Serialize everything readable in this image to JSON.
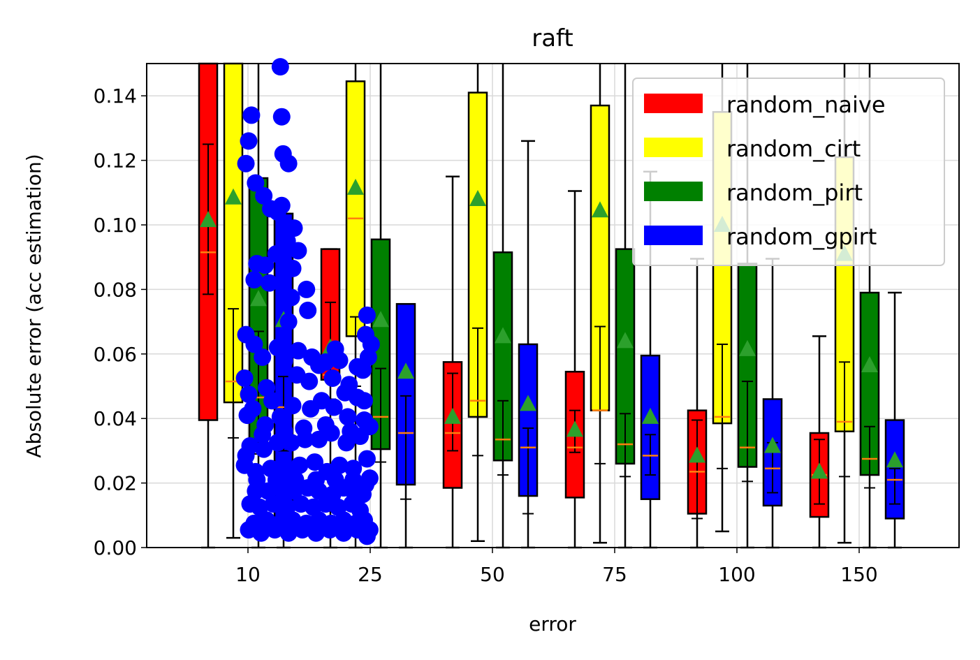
{
  "chart_data": {
    "type": "box",
    "title": "raft",
    "xlabel": "error",
    "ylabel": "Absolute error (acc estimation)",
    "ylim": [
      0,
      0.15
    ],
    "y_ticks": [
      "0.00",
      "0.02",
      "0.04",
      "0.06",
      "0.08",
      "0.10",
      "0.12",
      "0.14"
    ],
    "categories": [
      "10",
      "25",
      "50",
      "75",
      "100",
      "150"
    ],
    "grid": true,
    "legend_position": "upper-right",
    "series": [
      {
        "name": "random_naive",
        "color": "#ff0000",
        "boxes": [
          {
            "q1": 0.0395,
            "median": 0.0915,
            "q3": 0.151,
            "mean": 0.1015,
            "whisker_low": 0.0,
            "whisker_high": 0.151,
            "ci": [
              0.0785,
              0.125
            ]
          },
          {
            "q1": 0.052,
            "median": 0.0535,
            "q3": 0.0925,
            "mean": 0.062,
            "whisker_low": 0.0,
            "whisker_high": 0.0925,
            "ci": [
              0.046,
              0.076
            ]
          },
          {
            "q1": 0.0185,
            "median": 0.0355,
            "q3": 0.0575,
            "mean": 0.0405,
            "whisker_low": 0.0,
            "whisker_high": 0.115,
            "ci": [
              0.03,
              0.054
            ]
          },
          {
            "q1": 0.0155,
            "median": 0.031,
            "q3": 0.0545,
            "mean": 0.0365,
            "whisker_low": 0.0,
            "whisker_high": 0.1105,
            "ci": [
              0.0295,
              0.0425
            ]
          },
          {
            "q1": 0.0105,
            "median": 0.0235,
            "q3": 0.0425,
            "mean": 0.0285,
            "whisker_low": 0.0,
            "whisker_high": 0.0895,
            "ci": [
              0.009,
              0.0395
            ]
          },
          {
            "q1": 0.0095,
            "median": 0.0225,
            "q3": 0.0355,
            "mean": 0.0235,
            "whisker_low": 0.0,
            "whisker_high": 0.0655,
            "ci": [
              0.0135,
              0.0335
            ]
          }
        ]
      },
      {
        "name": "random_cirt",
        "color": "#ffff00",
        "boxes": [
          {
            "q1": 0.045,
            "median": 0.0515,
            "q3": 0.151,
            "mean": 0.1085,
            "whisker_low": 0.003,
            "whisker_high": 0.151,
            "ci": [
              0.034,
              0.074
            ]
          },
          {
            "q1": 0.0655,
            "median": 0.102,
            "q3": 0.1445,
            "mean": 0.1115,
            "whisker_low": 0.0,
            "whisker_high": 0.151,
            "ci": [
              0.05,
              0.0715
            ]
          },
          {
            "q1": 0.0405,
            "median": 0.0455,
            "q3": 0.141,
            "mean": 0.108,
            "whisker_low": 0.002,
            "whisker_high": 0.151,
            "ci": [
              0.0285,
              0.068
            ]
          },
          {
            "q1": 0.0425,
            "median": 0.0425,
            "q3": 0.137,
            "mean": 0.1045,
            "whisker_low": 0.0015,
            "whisker_high": 0.151,
            "ci": [
              0.026,
              0.0685
            ]
          },
          {
            "q1": 0.0385,
            "median": 0.0405,
            "q3": 0.135,
            "mean": 0.1,
            "whisker_low": 0.005,
            "whisker_high": 0.151,
            "ci": [
              0.0245,
              0.063
            ]
          },
          {
            "q1": 0.036,
            "median": 0.039,
            "q3": 0.121,
            "mean": 0.091,
            "whisker_low": 0.0015,
            "whisker_high": 0.151,
            "ci": [
              0.022,
              0.0575
            ]
          }
        ]
      },
      {
        "name": "random_pirt",
        "color": "#008000",
        "boxes": [
          {
            "q1": 0.0305,
            "median": 0.0465,
            "q3": 0.1145,
            "mean": 0.077,
            "whisker_low": 0.0,
            "whisker_high": 0.151,
            "ci": [
              0.029,
              0.067
            ]
          },
          {
            "q1": 0.0305,
            "median": 0.0405,
            "q3": 0.0955,
            "mean": 0.0705,
            "whisker_low": 0.0,
            "whisker_high": 0.151,
            "ci": [
              0.0265,
              0.0555
            ]
          },
          {
            "q1": 0.027,
            "median": 0.0335,
            "q3": 0.0915,
            "mean": 0.0655,
            "whisker_low": 0.0,
            "whisker_high": 0.151,
            "ci": [
              0.0225,
              0.0455
            ]
          },
          {
            "q1": 0.026,
            "median": 0.032,
            "q3": 0.0925,
            "mean": 0.064,
            "whisker_low": 0.0,
            "whisker_high": 0.151,
            "ci": [
              0.022,
              0.0415
            ]
          },
          {
            "q1": 0.025,
            "median": 0.031,
            "q3": 0.088,
            "mean": 0.0615,
            "whisker_low": 0.0,
            "whisker_high": 0.151,
            "ci": [
              0.0205,
              0.0515
            ]
          },
          {
            "q1": 0.0225,
            "median": 0.0275,
            "q3": 0.079,
            "mean": 0.0565,
            "whisker_low": 0.0,
            "whisker_high": 0.151,
            "ci": [
              0.0185,
              0.0375
            ]
          }
        ]
      },
      {
        "name": "random_gpirt",
        "color": "#0000ff",
        "boxes": [
          {
            "q1": 0.0045,
            "median": 0.0435,
            "q3": 0.1035,
            "mean": 0.0705,
            "whisker_low": 0.0,
            "whisker_high": 0.1035,
            "ci": [
              0.03,
              0.053
            ]
          },
          {
            "q1": 0.0195,
            "median": 0.0355,
            "q3": 0.0755,
            "mean": 0.0545,
            "whisker_low": 0.0,
            "whisker_high": 0.0755,
            "ci": [
              0.015,
              0.047
            ]
          },
          {
            "q1": 0.016,
            "median": 0.031,
            "q3": 0.063,
            "mean": 0.0445,
            "whisker_low": 0.0,
            "whisker_high": 0.126,
            "ci": [
              0.0105,
              0.037
            ]
          },
          {
            "q1": 0.015,
            "median": 0.0285,
            "q3": 0.0595,
            "mean": 0.0405,
            "whisker_low": 0.0,
            "whisker_high": 0.1165,
            "ci": [
              0.0225,
              0.035
            ]
          },
          {
            "q1": 0.013,
            "median": 0.0245,
            "q3": 0.046,
            "mean": 0.0315,
            "whisker_low": 0.0,
            "whisker_high": 0.0895,
            "ci": [
              0.017,
              0.0325
            ]
          },
          {
            "q1": 0.009,
            "median": 0.021,
            "q3": 0.0395,
            "mean": 0.027,
            "whisker_low": 0.0,
            "whisker_high": 0.079,
            "ci": [
              0.0135,
              0.0245
            ]
          }
        ]
      }
    ],
    "outliers": {
      "color": "#0000ff",
      "points": [
        [
          10.2,
          0.134
        ],
        [
          10.0,
          0.126
        ],
        [
          9.8,
          0.119
        ],
        [
          10.5,
          0.113
        ],
        [
          11.1,
          0.109
        ],
        [
          11.6,
          0.105
        ],
        [
          12.3,
          0.149
        ],
        [
          12.4,
          0.1335
        ],
        [
          12.5,
          0.122
        ],
        [
          12.9,
          0.119
        ],
        [
          12.4,
          0.106
        ],
        [
          12.1,
          0.104
        ],
        [
          13.3,
          0.099
        ],
        [
          12.8,
          0.095
        ],
        [
          13.6,
          0.092
        ],
        [
          13.2,
          0.0865
        ],
        [
          12.0,
          0.091
        ],
        [
          11.2,
          0.0875
        ],
        [
          10.6,
          0.088
        ],
        [
          10.4,
          0.083
        ],
        [
          11.5,
          0.082
        ],
        [
          14.2,
          0.08
        ],
        [
          13.1,
          0.0775
        ],
        [
          14.3,
          0.0735
        ],
        [
          12.9,
          0.07
        ],
        [
          9.8,
          0.066
        ],
        [
          10.4,
          0.063
        ],
        [
          11.0,
          0.059
        ],
        [
          12.1,
          0.062
        ],
        [
          12.6,
          0.058
        ],
        [
          13.6,
          0.061
        ],
        [
          14.6,
          0.059
        ],
        [
          15.1,
          0.0565
        ],
        [
          16.1,
          0.0525
        ],
        [
          17.0,
          0.048
        ],
        [
          17.3,
          0.0505
        ],
        [
          18.6,
          0.072
        ],
        [
          18.5,
          0.066
        ],
        [
          18.9,
          0.063
        ],
        [
          18.7,
          0.059
        ],
        [
          18.3,
          0.055
        ],
        [
          17.9,
          0.056
        ],
        [
          16.6,
          0.058
        ],
        [
          16.3,
          0.0615
        ],
        [
          15.6,
          0.0575
        ],
        [
          14.4,
          0.0515
        ],
        [
          13.5,
          0.0535
        ],
        [
          11.3,
          0.0495
        ],
        [
          10.0,
          0.0475
        ],
        [
          9.7,
          0.0525
        ],
        [
          9.9,
          0.041
        ],
        [
          10.3,
          0.043
        ],
        [
          11.7,
          0.0455
        ],
        [
          11.2,
          0.038
        ],
        [
          12.3,
          0.0405
        ],
        [
          13.2,
          0.044
        ],
        [
          14.5,
          0.043
        ],
        [
          15.3,
          0.0455
        ],
        [
          16.2,
          0.0435
        ],
        [
          17.2,
          0.0405
        ],
        [
          17.9,
          0.0465
        ],
        [
          18.4,
          0.0455
        ],
        [
          18.8,
          0.0375
        ],
        [
          18.1,
          0.0345
        ],
        [
          17.1,
          0.0325
        ],
        [
          16.0,
          0.0355
        ],
        [
          15.1,
          0.0335
        ],
        [
          14.1,
          0.0335
        ],
        [
          13.1,
          0.0325
        ],
        [
          12.1,
          0.0325
        ],
        [
          11.1,
          0.0305
        ],
        [
          10.1,
          0.0315
        ],
        [
          9.8,
          0.0285
        ],
        [
          9.7,
          0.0255
        ],
        [
          10.5,
          0.0235
        ],
        [
          11.6,
          0.0245
        ],
        [
          12.7,
          0.0235
        ],
        [
          13.7,
          0.0255
        ],
        [
          14.8,
          0.0265
        ],
        [
          15.7,
          0.0235
        ],
        [
          16.6,
          0.0255
        ],
        [
          17.6,
          0.0245
        ],
        [
          18.6,
          0.0275
        ],
        [
          18.8,
          0.0215
        ],
        [
          18.5,
          0.0195
        ],
        [
          18.3,
          0.0165
        ],
        [
          17.6,
          0.0175
        ],
        [
          16.9,
          0.0185
        ],
        [
          16.1,
          0.0165
        ],
        [
          15.1,
          0.0175
        ],
        [
          14.3,
          0.0185
        ],
        [
          13.3,
          0.0175
        ],
        [
          12.4,
          0.0185
        ],
        [
          11.4,
          0.0175
        ],
        [
          10.5,
          0.0175
        ],
        [
          10.1,
          0.0135
        ],
        [
          10.8,
          0.0125
        ],
        [
          11.8,
          0.0135
        ],
        [
          12.8,
          0.0125
        ],
        [
          13.8,
          0.0135
        ],
        [
          14.7,
          0.0125
        ],
        [
          15.6,
          0.0135
        ],
        [
          16.5,
          0.0125
        ],
        [
          17.5,
          0.0135
        ],
        [
          18.1,
          0.0115
        ],
        [
          18.4,
          0.0085
        ],
        [
          17.8,
          0.0075
        ],
        [
          16.9,
          0.0085
        ],
        [
          16.0,
          0.0075
        ],
        [
          15.1,
          0.0085
        ],
        [
          14.2,
          0.0075
        ],
        [
          13.2,
          0.0085
        ],
        [
          12.3,
          0.0075
        ],
        [
          11.3,
          0.0085
        ],
        [
          10.4,
          0.0075
        ],
        [
          10.0,
          0.0055
        ],
        [
          10.9,
          0.0045
        ],
        [
          11.9,
          0.0055
        ],
        [
          12.9,
          0.0045
        ],
        [
          13.9,
          0.0055
        ],
        [
          14.9,
          0.0045
        ],
        [
          15.9,
          0.0055
        ],
        [
          16.9,
          0.0045
        ],
        [
          17.9,
          0.0055
        ],
        [
          18.6,
          0.0035
        ],
        [
          18.8,
          0.0055
        ],
        [
          10.6,
          0.021
        ],
        [
          12.0,
          0.021
        ],
        [
          13.4,
          0.021
        ],
        [
          14.9,
          0.021
        ],
        [
          16.3,
          0.021
        ],
        [
          17.6,
          0.021
        ],
        [
          11.0,
          0.035
        ],
        [
          12.6,
          0.036
        ],
        [
          14.0,
          0.037
        ],
        [
          15.6,
          0.038
        ],
        [
          17.4,
          0.036
        ],
        [
          18.4,
          0.0395
        ]
      ]
    }
  }
}
